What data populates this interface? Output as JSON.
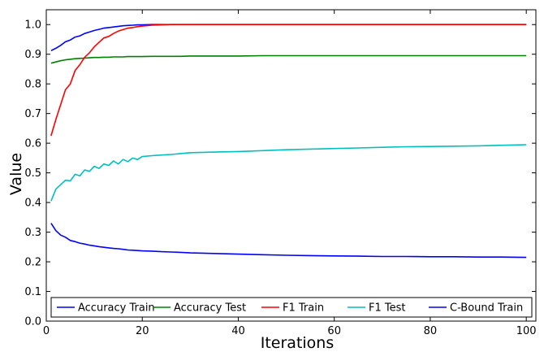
{
  "chart_data": {
    "type": "line",
    "title": "",
    "xlabel": "Iterations",
    "ylabel": "Value",
    "xlim": [
      0,
      102
    ],
    "ylim": [
      0.0,
      1.05
    ],
    "xticks": [
      0,
      20,
      40,
      60,
      80,
      100
    ],
    "yticks": [
      0.0,
      0.1,
      0.2,
      0.3,
      0.4,
      0.5,
      0.6,
      0.7,
      0.8,
      0.9,
      1.0
    ],
    "x_tick_labels": [
      "0",
      "20",
      "40",
      "60",
      "80",
      "100"
    ],
    "y_tick_labels": [
      "0.0",
      "0.1",
      "0.2",
      "0.3",
      "0.4",
      "0.5",
      "0.6",
      "0.7",
      "0.8",
      "0.9",
      "1.0"
    ],
    "grid": false,
    "legend_position": "bottom",
    "x": [
      1,
      2,
      3,
      4,
      5,
      6,
      7,
      8,
      9,
      10,
      11,
      12,
      13,
      14,
      15,
      16,
      17,
      18,
      19,
      20,
      22,
      24,
      26,
      28,
      30,
      35,
      40,
      45,
      50,
      55,
      60,
      65,
      70,
      75,
      80,
      85,
      90,
      95,
      100
    ],
    "series": [
      {
        "name": "Accuracy Train",
        "color": "#0000ff",
        "values": [
          0.912,
          0.92,
          0.93,
          0.942,
          0.948,
          0.958,
          0.962,
          0.97,
          0.975,
          0.98,
          0.984,
          0.988,
          0.99,
          0.992,
          0.994,
          0.996,
          0.997,
          0.998,
          0.999,
          0.999,
          1.0,
          1.0,
          1.0,
          1.0,
          1.0,
          1.0,
          1.0,
          1.0,
          1.0,
          1.0,
          1.0,
          1.0,
          1.0,
          1.0,
          1.0,
          1.0,
          1.0,
          1.0,
          1.0
        ]
      },
      {
        "name": "Accuracy Test",
        "color": "#008000",
        "values": [
          0.87,
          0.874,
          0.878,
          0.881,
          0.883,
          0.885,
          0.886,
          0.887,
          0.888,
          0.889,
          0.889,
          0.89,
          0.89,
          0.891,
          0.891,
          0.891,
          0.892,
          0.892,
          0.892,
          0.892,
          0.893,
          0.893,
          0.893,
          0.893,
          0.894,
          0.894,
          0.894,
          0.895,
          0.895,
          0.895,
          0.895,
          0.895,
          0.895,
          0.895,
          0.895,
          0.895,
          0.895,
          0.895,
          0.895
        ]
      },
      {
        "name": "F1 Train",
        "color": "#ff0000",
        "values": [
          0.625,
          0.68,
          0.73,
          0.78,
          0.8,
          0.845,
          0.865,
          0.89,
          0.905,
          0.925,
          0.94,
          0.955,
          0.96,
          0.97,
          0.978,
          0.983,
          0.988,
          0.99,
          0.993,
          0.995,
          0.998,
          0.999,
          1.0,
          1.0,
          1.0,
          1.0,
          1.0,
          1.0,
          1.0,
          1.0,
          1.0,
          1.0,
          1.0,
          1.0,
          1.0,
          1.0,
          1.0,
          1.0,
          1.0
        ]
      },
      {
        "name": "F1 Test",
        "color": "#00bfbf",
        "values": [
          0.405,
          0.445,
          0.46,
          0.475,
          0.473,
          0.495,
          0.49,
          0.51,
          0.505,
          0.522,
          0.515,
          0.53,
          0.525,
          0.54,
          0.53,
          0.545,
          0.538,
          0.55,
          0.545,
          0.555,
          0.558,
          0.56,
          0.562,
          0.565,
          0.568,
          0.57,
          0.572,
          0.575,
          0.578,
          0.58,
          0.582,
          0.584,
          0.586,
          0.588,
          0.589,
          0.59,
          0.591,
          0.593,
          0.595
        ]
      },
      {
        "name": "C-Bound Train",
        "color": "#0000ff",
        "values": [
          0.33,
          0.305,
          0.29,
          0.283,
          0.272,
          0.268,
          0.263,
          0.26,
          0.256,
          0.254,
          0.251,
          0.249,
          0.247,
          0.245,
          0.244,
          0.242,
          0.24,
          0.239,
          0.238,
          0.237,
          0.236,
          0.234,
          0.233,
          0.232,
          0.23,
          0.228,
          0.226,
          0.224,
          0.222,
          0.221,
          0.22,
          0.219,
          0.218,
          0.218,
          0.217,
          0.217,
          0.216,
          0.216,
          0.215
        ]
      }
    ]
  }
}
